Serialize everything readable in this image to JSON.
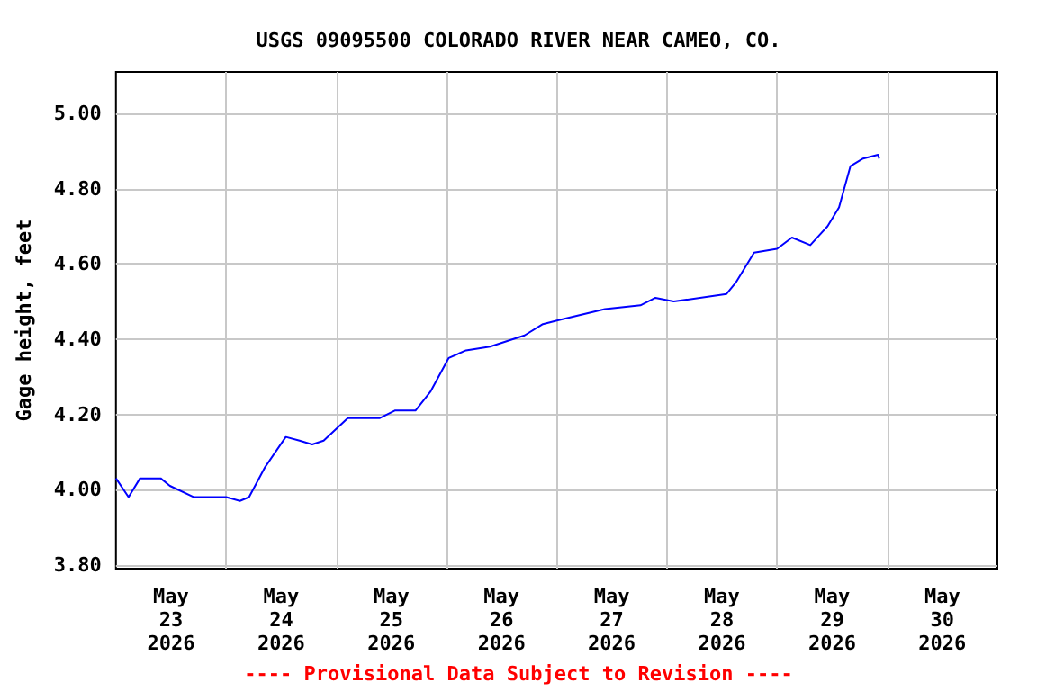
{
  "chart_data": {
    "type": "line",
    "title": "USGS 09095500 COLORADO RIVER NEAR CAMEO, CO.",
    "ylabel": "Gage height, feet",
    "annotations": [
      "---- Provisional Data Subject to Revision ----"
    ],
    "x": [
      "2026-05-23T00:00",
      "2026-05-23T02:45",
      "2026-05-23T05:15",
      "2026-05-23T09:45",
      "2026-05-23T11:45",
      "2026-05-23T17:00",
      "2026-05-24T00:00",
      "2026-05-24T03:00",
      "2026-05-24T05:00",
      "2026-05-24T08:30",
      "2026-05-24T13:00",
      "2026-05-24T16:00",
      "2026-05-24T18:45",
      "2026-05-24T21:15",
      "2026-05-25T02:30",
      "2026-05-25T09:30",
      "2026-05-25T12:45",
      "2026-05-25T17:15",
      "2026-05-25T20:30",
      "2026-05-26T00:30",
      "2026-05-26T04:15",
      "2026-05-26T09:30",
      "2026-05-26T17:00",
      "2026-05-26T21:00",
      "2026-05-27T00:15",
      "2026-05-27T10:30",
      "2026-05-27T18:15",
      "2026-05-27T21:30",
      "2026-05-28T01:30",
      "2026-05-28T13:00",
      "2026-05-28T15:00",
      "2026-05-28T19:00",
      "2026-05-29T00:00",
      "2026-05-29T03:15",
      "2026-05-29T07:15",
      "2026-05-29T11:00",
      "2026-05-29T13:30",
      "2026-05-29T16:00",
      "2026-05-29T18:45",
      "2026-05-29T22:00",
      "2026-05-29T22:15"
    ],
    "series": [
      {
        "color": "#0000ff",
        "values": [
          4.03,
          3.98,
          4.03,
          4.03,
          4.01,
          3.98,
          3.98,
          3.97,
          3.98,
          4.06,
          4.14,
          4.13,
          4.12,
          4.13,
          4.19,
          4.19,
          4.21,
          4.21,
          4.26,
          4.35,
          4.37,
          4.38,
          4.41,
          4.44,
          4.45,
          4.48,
          4.49,
          4.51,
          4.5,
          4.52,
          4.55,
          4.63,
          4.64,
          4.67,
          4.65,
          4.7,
          4.75,
          4.86,
          4.88,
          4.89,
          4.88
        ]
      }
    ],
    "xlim": [
      "2026-05-23T00:00",
      "2026-05-31T00:00"
    ],
    "xticks": [
      {
        "value": "2026-05-23T12:00",
        "label": "May\n23\n2026"
      },
      {
        "value": "2026-05-24T12:00",
        "label": "May\n24\n2026"
      },
      {
        "value": "2026-05-25T12:00",
        "label": "May\n25\n2026"
      },
      {
        "value": "2026-05-26T12:00",
        "label": "May\n26\n2026"
      },
      {
        "value": "2026-05-27T12:00",
        "label": "May\n27\n2026"
      },
      {
        "value": "2026-05-28T12:00",
        "label": "May\n28\n2026"
      },
      {
        "value": "2026-05-29T12:00",
        "label": "May\n29\n2026"
      },
      {
        "value": "2026-05-30T12:00",
        "label": "May\n30\n2026"
      },
      {
        "value": "2026-05-24T00:00",
        "label": null
      },
      {
        "value": "2026-05-25T00:00",
        "label": null
      },
      {
        "value": "2026-05-26T00:00",
        "label": null
      },
      {
        "value": "2026-05-27T00:00",
        "label": null
      },
      {
        "value": "2026-05-28T00:00",
        "label": null
      },
      {
        "value": "2026-05-29T00:00",
        "label": null
      },
      {
        "value": "2026-05-30T00:00",
        "label": null
      }
    ],
    "ylim": [
      3.79,
      5.11
    ],
    "yticks": [
      {
        "value": 3.8,
        "label": "3.80"
      },
      {
        "value": 4.0,
        "label": "4.00"
      },
      {
        "value": 4.2,
        "label": "4.20"
      },
      {
        "value": 4.4,
        "label": "4.40"
      },
      {
        "value": 4.6,
        "label": "4.60"
      },
      {
        "value": 4.8,
        "label": "4.80"
      },
      {
        "value": 5.0,
        "label": "5.00"
      }
    ],
    "grid": true,
    "marker": "none",
    "line_style": "solid"
  }
}
